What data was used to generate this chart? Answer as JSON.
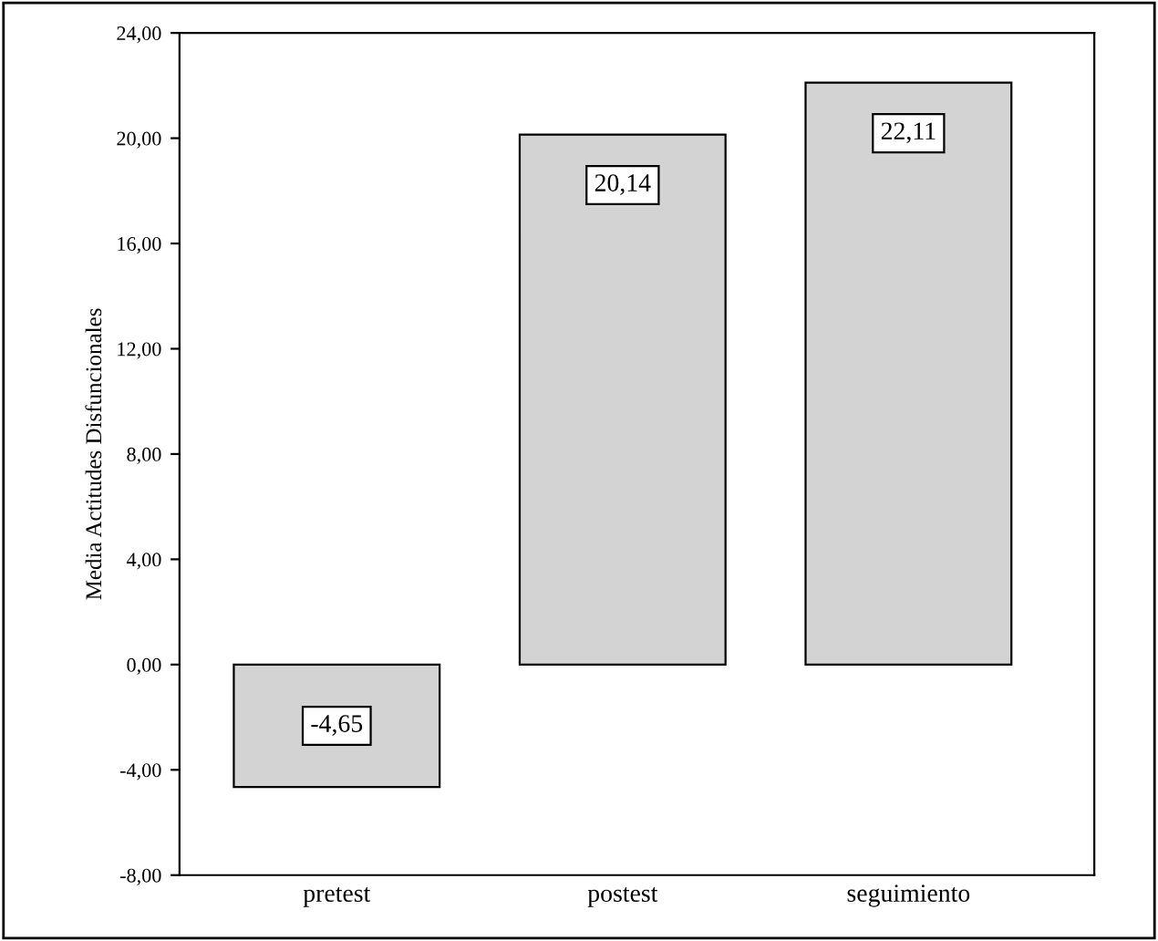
{
  "chart_data": {
    "type": "bar",
    "ylabel": "Media Actitudes Disfuncionales",
    "categories": [
      "pretest",
      "postest",
      "seguimiento"
    ],
    "values": [
      -4.65,
      20.14,
      22.11
    ],
    "value_labels": [
      "-4,65",
      "20,14",
      "22,11"
    ],
    "color": "#d3d3d3",
    "ylim": [
      -8,
      24
    ],
    "yticks": [
      {
        "value": -8,
        "label": "-8,00"
      },
      {
        "value": -4,
        "label": "-4,00"
      },
      {
        "value": 0,
        "label": "0,00"
      },
      {
        "value": 4,
        "label": "4,00"
      },
      {
        "value": 8,
        "label": "8,00"
      },
      {
        "value": 12,
        "label": "12,00"
      },
      {
        "value": 16,
        "label": "16,00"
      },
      {
        "value": 20,
        "label": "20,00"
      },
      {
        "value": 24,
        "label": "24,00"
      }
    ],
    "grid": false,
    "legend": false
  }
}
